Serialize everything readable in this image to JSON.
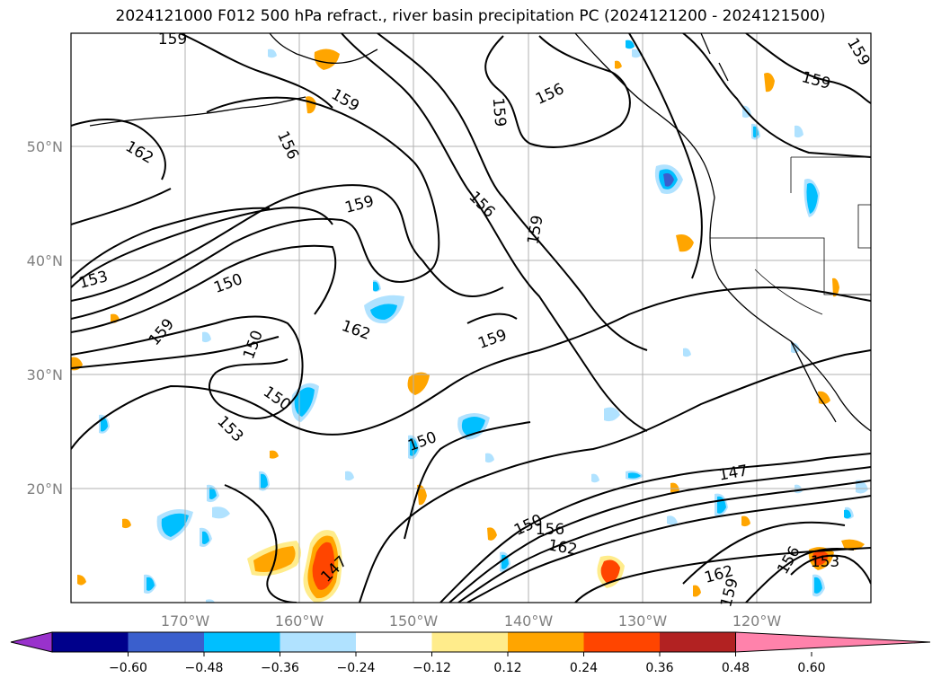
{
  "title": "2024121000 F012 500 hPa refract., river basin precipitation PC (2024121200 - 2024121500)",
  "map": {
    "lon_ticks": [
      "170°W",
      "160°W",
      "150°W",
      "140°W",
      "130°W",
      "120°W"
    ],
    "lat_ticks": [
      "50°N",
      "40°N",
      "30°N",
      "20°N"
    ],
    "contour_labels": [
      "159",
      "159",
      "156",
      "159",
      "156",
      "156",
      "162",
      "159",
      "159",
      "153",
      "150",
      "159",
      "150",
      "162",
      "159",
      "150",
      "153",
      "150",
      "147",
      "150",
      "156",
      "162",
      "147",
      "162",
      "159",
      "156",
      "153",
      "159",
      "159"
    ],
    "colors": {
      "contour": "#000000",
      "grid": "#b0b0b0",
      "coast": "#000000"
    }
  },
  "colorbar": {
    "ticks": [
      "−0.60",
      "−0.48",
      "−0.36",
      "−0.24",
      "−0.12",
      "0.12",
      "0.24",
      "0.36",
      "0.48",
      "0.60"
    ],
    "colors": [
      "#9932cc",
      "#00008b",
      "#3a5fcd",
      "#00bfff",
      "#b0e2ff",
      "#ffffff",
      "#ffec8b",
      "#ffa500",
      "#ff4500",
      "#b22222",
      "#ff82ab"
    ]
  }
}
